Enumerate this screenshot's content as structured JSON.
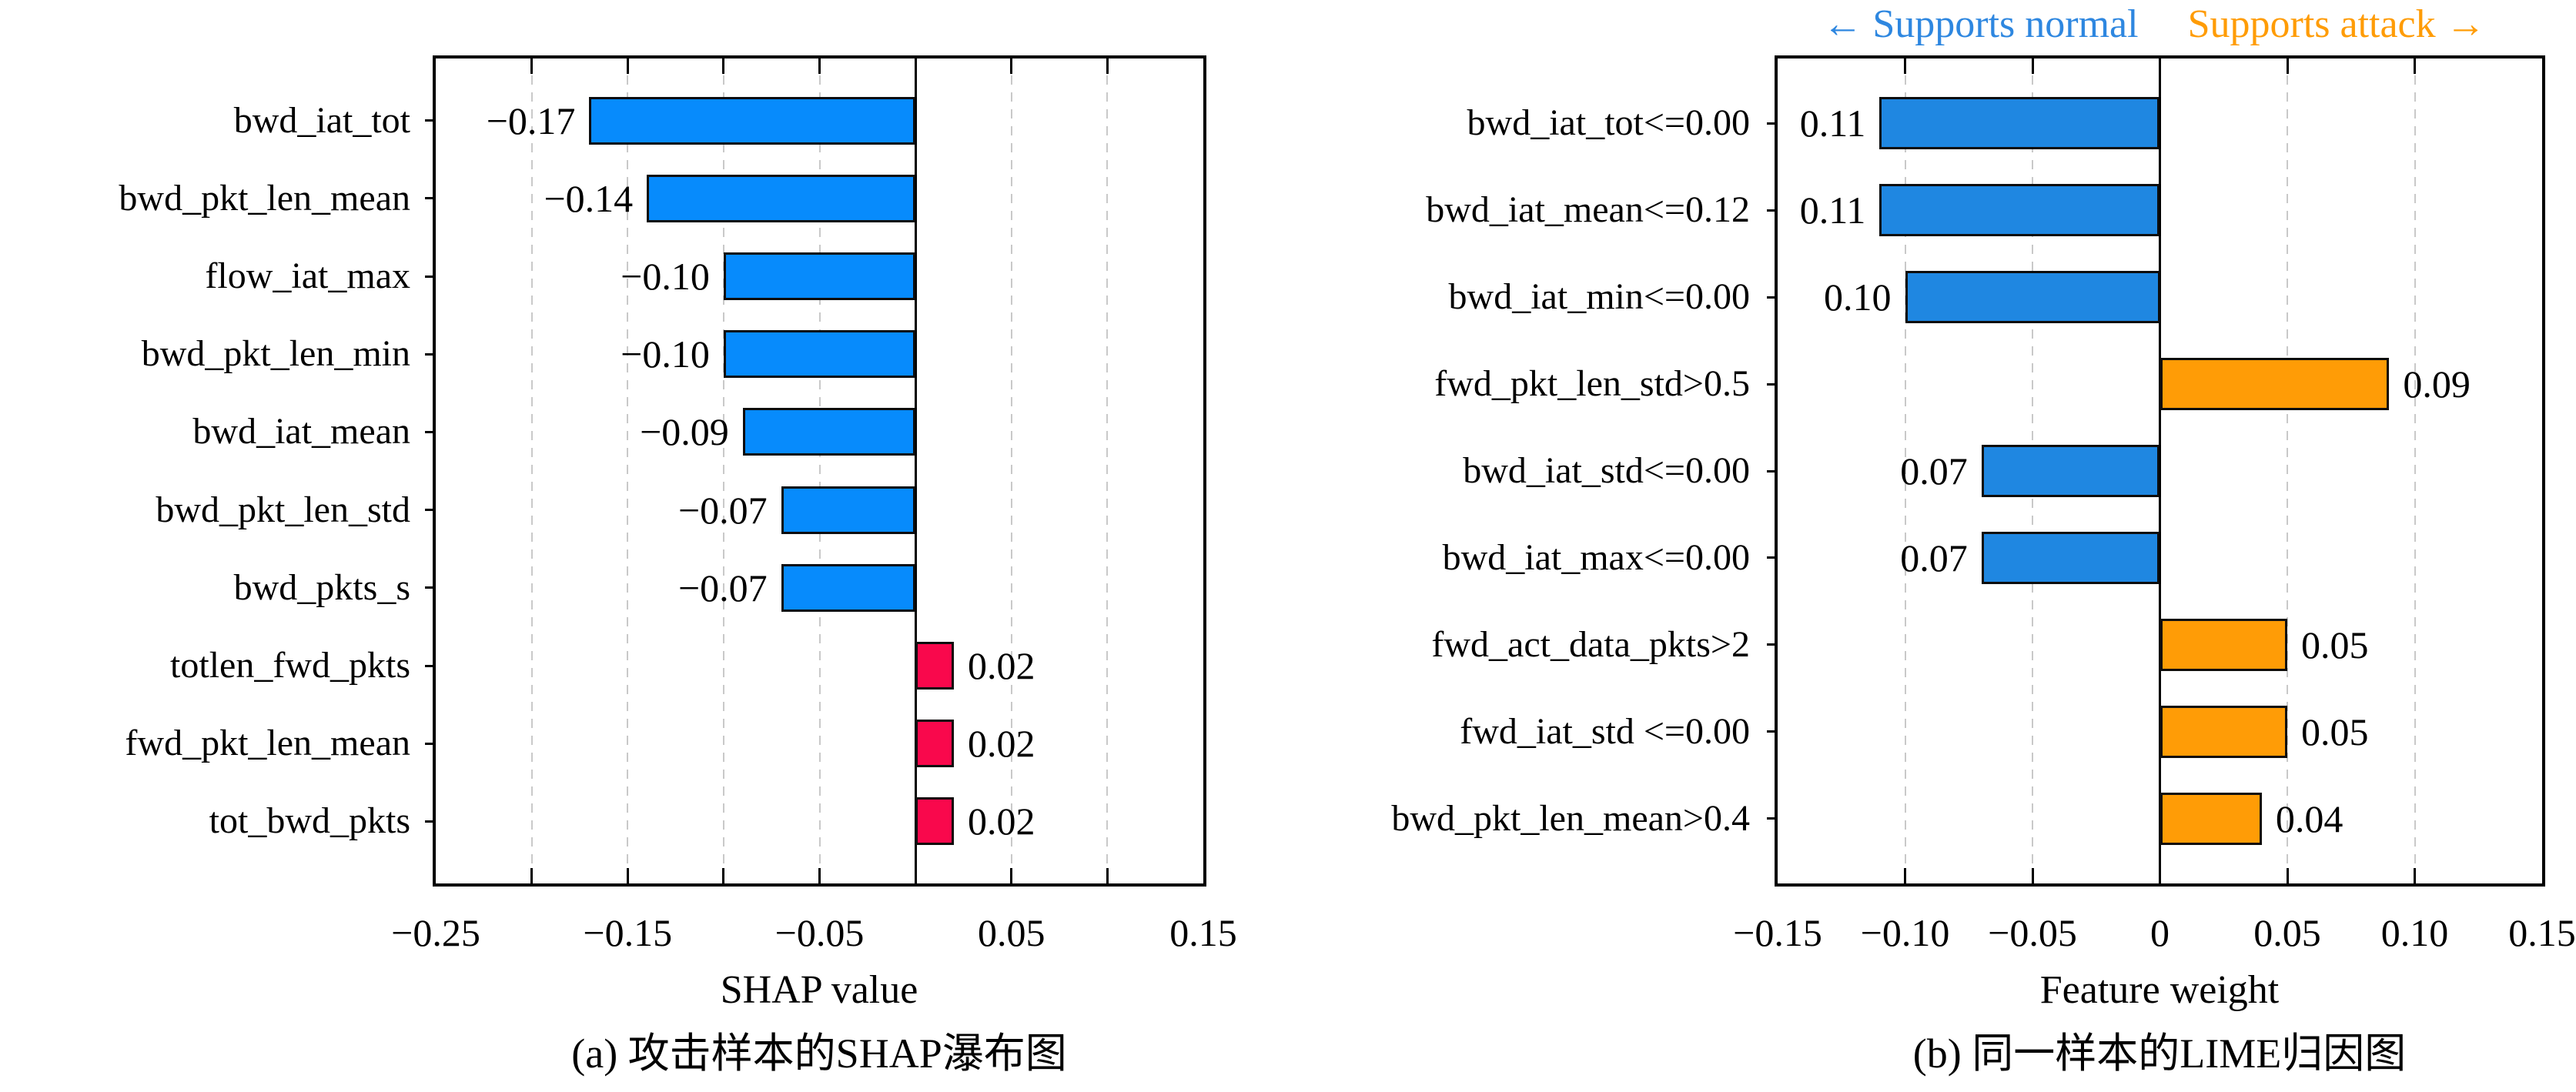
{
  "legend": {
    "normal_label": "← Supports normal",
    "attack_label": "Supports attack →",
    "normal_color": "#2E87E0",
    "attack_color": "#FF9C06"
  },
  "chart_data": [
    {
      "type": "bar",
      "orientation": "horizontal",
      "title": "",
      "xlabel": "SHAP value",
      "caption": "(a) 攻击样本的SHAP瀑布图",
      "xlim": [
        -0.25,
        0.15
      ],
      "grid": true,
      "zero_line": 0,
      "grid_values": [
        -0.2,
        -0.15,
        -0.1,
        -0.05,
        0.05,
        0.1
      ],
      "xtick_labels": [
        {
          "value": -0.25,
          "label": "−0.25"
        },
        {
          "value": -0.15,
          "label": "−0.15"
        },
        {
          "value": -0.05,
          "label": "−0.05"
        },
        {
          "value": 0.05,
          "label": "0.05"
        },
        {
          "value": 0.15,
          "label": "0.15"
        }
      ],
      "colors": {
        "negative": "#078BFC",
        "positive": "#F9084C"
      },
      "bars": [
        {
          "category": "bwd_iat_tot",
          "value": -0.17,
          "label": "−0.17"
        },
        {
          "category": "bwd_pkt_len_mean",
          "value": -0.14,
          "label": "−0.14"
        },
        {
          "category": "flow_iat_max",
          "value": -0.1,
          "label": "−0.10"
        },
        {
          "category": "bwd_pkt_len_min",
          "value": -0.1,
          "label": "−0.10"
        },
        {
          "category": "bwd_iat_mean",
          "value": -0.09,
          "label": "−0.09"
        },
        {
          "category": "bwd_pkt_len_std",
          "value": -0.07,
          "label": "−0.07"
        },
        {
          "category": "bwd_pkts_s",
          "value": -0.07,
          "label": "−0.07"
        },
        {
          "category": "totlen_fwd_pkts",
          "value": 0.02,
          "label": "0.02"
        },
        {
          "category": "fwd_pkt_len_mean",
          "value": 0.02,
          "label": "0.02"
        },
        {
          "category": "tot_bwd_pkts",
          "value": 0.02,
          "label": "0.02"
        }
      ]
    },
    {
      "type": "bar",
      "orientation": "horizontal",
      "title": "",
      "xlabel": "Feature weight",
      "caption": "(b) 同一样本的LIME归因图",
      "xlim": [
        -0.15,
        0.15
      ],
      "grid": true,
      "zero_line": 0,
      "grid_values": [
        -0.1,
        -0.05,
        0.05,
        0.1
      ],
      "xtick_labels": [
        {
          "value": -0.15,
          "label": "−0.15"
        },
        {
          "value": -0.1,
          "label": "−0.10"
        },
        {
          "value": -0.05,
          "label": "−0.05"
        },
        {
          "value": 0,
          "label": "0"
        },
        {
          "value": 0.05,
          "label": "0.05"
        },
        {
          "value": 0.1,
          "label": "0.10"
        },
        {
          "value": 0.15,
          "label": "0.15"
        }
      ],
      "colors": {
        "negative": "#1F87E1",
        "positive": "#FF9C06"
      },
      "bars": [
        {
          "category": "bwd_iat_tot<=0.00",
          "value": -0.11,
          "label": "0.11"
        },
        {
          "category": "bwd_iat_mean<=0.12",
          "value": -0.11,
          "label": "0.11"
        },
        {
          "category": "bwd_iat_min<=0.00",
          "value": -0.1,
          "label": "0.10"
        },
        {
          "category": "fwd_pkt_len_std>0.5",
          "value": 0.09,
          "label": "0.09"
        },
        {
          "category": "bwd_iat_std<=0.00",
          "value": -0.07,
          "label": "0.07"
        },
        {
          "category": "bwd_iat_max<=0.00",
          "value": -0.07,
          "label": "0.07"
        },
        {
          "category": "fwd_act_data_pkts>2",
          "value": 0.05,
          "label": "0.05"
        },
        {
          "category": "fwd_iat_std <=0.00",
          "value": 0.05,
          "label": "0.05"
        },
        {
          "category": "bwd_pkt_len_mean>0.4",
          "value": 0.04,
          "label": "0.04"
        }
      ]
    }
  ]
}
